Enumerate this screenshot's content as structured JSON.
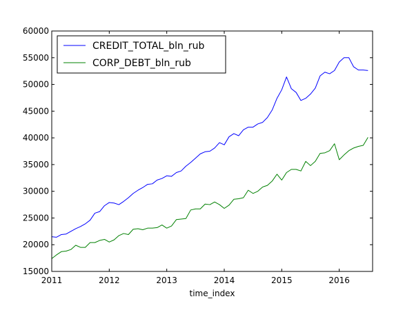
{
  "chart_data": {
    "type": "line",
    "title": "",
    "xlabel": "time_index",
    "ylabel": "",
    "xlim": [
      2011.0,
      2016.58
    ],
    "ylim": [
      15000,
      60000
    ],
    "x_ticks": [
      2011,
      2012,
      2013,
      2014,
      2015,
      2016
    ],
    "x_tick_labels": [
      "2011",
      "2012",
      "2013",
      "2014",
      "2015",
      "2016"
    ],
    "y_ticks": [
      15000,
      20000,
      25000,
      30000,
      35000,
      40000,
      45000,
      50000,
      55000,
      60000
    ],
    "y_tick_labels": [
      "15000",
      "20000",
      "25000",
      "30000",
      "35000",
      "40000",
      "45000",
      "50000",
      "55000",
      "60000"
    ],
    "grid": false,
    "legend": {
      "placement": "top-left",
      "entries": [
        "CREDIT_TOTAL_bln_rub",
        "CORP_DEBT_bln_rub"
      ]
    },
    "series": [
      {
        "name": "CREDIT_TOTAL_bln_rub",
        "color": "#0000ff",
        "x": [
          2011.0,
          2011.083,
          2011.167,
          2011.25,
          2011.333,
          2011.417,
          2011.5,
          2011.583,
          2011.667,
          2011.75,
          2011.833,
          2011.917,
          2012.0,
          2012.083,
          2012.167,
          2012.25,
          2012.333,
          2012.417,
          2012.5,
          2012.583,
          2012.667,
          2012.75,
          2012.833,
          2012.917,
          2013.0,
          2013.083,
          2013.167,
          2013.25,
          2013.333,
          2013.417,
          2013.5,
          2013.583,
          2013.667,
          2013.75,
          2013.833,
          2013.917,
          2014.0,
          2014.083,
          2014.167,
          2014.25,
          2014.333,
          2014.417,
          2014.5,
          2014.583,
          2014.667,
          2014.75,
          2014.833,
          2014.917,
          2015.0,
          2015.083,
          2015.167,
          2015.25,
          2015.333,
          2015.417,
          2015.5,
          2015.583,
          2015.667,
          2015.75,
          2015.833,
          2015.917,
          2016.0,
          2016.083,
          2016.167,
          2016.25,
          2016.333,
          2016.417,
          2016.5
        ],
        "values": [
          21500,
          21400,
          21900,
          22000,
          22500,
          23000,
          23400,
          23900,
          24600,
          25900,
          26200,
          27300,
          27900,
          27800,
          27500,
          28100,
          28800,
          29600,
          30200,
          30700,
          31300,
          31400,
          32100,
          32400,
          32900,
          32800,
          33500,
          33800,
          34700,
          35400,
          36200,
          37000,
          37400,
          37500,
          38100,
          39100,
          38700,
          40200,
          40800,
          40400,
          41500,
          42000,
          42000,
          42600,
          42900,
          43800,
          45200,
          47400,
          49000,
          51400,
          49200,
          48500,
          47000,
          47400,
          48200,
          49300,
          51600,
          52300,
          52000,
          52600,
          54200,
          55000,
          55000,
          53300,
          52700,
          52700,
          52600
        ]
      },
      {
        "name": "CORP_DEBT_bln_rub",
        "color": "#008000",
        "x": [
          2011.0,
          2011.083,
          2011.167,
          2011.25,
          2011.333,
          2011.417,
          2011.5,
          2011.583,
          2011.667,
          2011.75,
          2011.833,
          2011.917,
          2012.0,
          2012.083,
          2012.167,
          2012.25,
          2012.333,
          2012.417,
          2012.5,
          2012.583,
          2012.667,
          2012.75,
          2012.833,
          2012.917,
          2013.0,
          2013.083,
          2013.167,
          2013.25,
          2013.333,
          2013.417,
          2013.5,
          2013.583,
          2013.667,
          2013.75,
          2013.833,
          2013.917,
          2014.0,
          2014.083,
          2014.167,
          2014.25,
          2014.333,
          2014.417,
          2014.5,
          2014.583,
          2014.667,
          2014.75,
          2014.833,
          2014.917,
          2015.0,
          2015.083,
          2015.167,
          2015.25,
          2015.333,
          2015.417,
          2015.5,
          2015.583,
          2015.667,
          2015.75,
          2015.833,
          2015.917,
          2016.0,
          2016.083,
          2016.167,
          2016.25,
          2016.333,
          2016.417,
          2016.5
        ],
        "values": [
          17400,
          18100,
          18700,
          18800,
          19100,
          19900,
          19500,
          19500,
          20400,
          20400,
          20800,
          21000,
          20500,
          20900,
          21700,
          22100,
          21900,
          22900,
          23000,
          22800,
          23100,
          23100,
          23200,
          23700,
          23100,
          23500,
          24700,
          24800,
          24900,
          26500,
          26700,
          26700,
          27600,
          27500,
          28000,
          27500,
          26800,
          27400,
          28500,
          28600,
          28800,
          30200,
          29600,
          30000,
          30800,
          31100,
          31900,
          33200,
          32100,
          33500,
          34100,
          34100,
          33800,
          35600,
          34800,
          35600,
          37100,
          37200,
          37600,
          38900,
          35900,
          36800,
          37600,
          38100,
          38400,
          38600,
          40100
        ]
      }
    ]
  }
}
